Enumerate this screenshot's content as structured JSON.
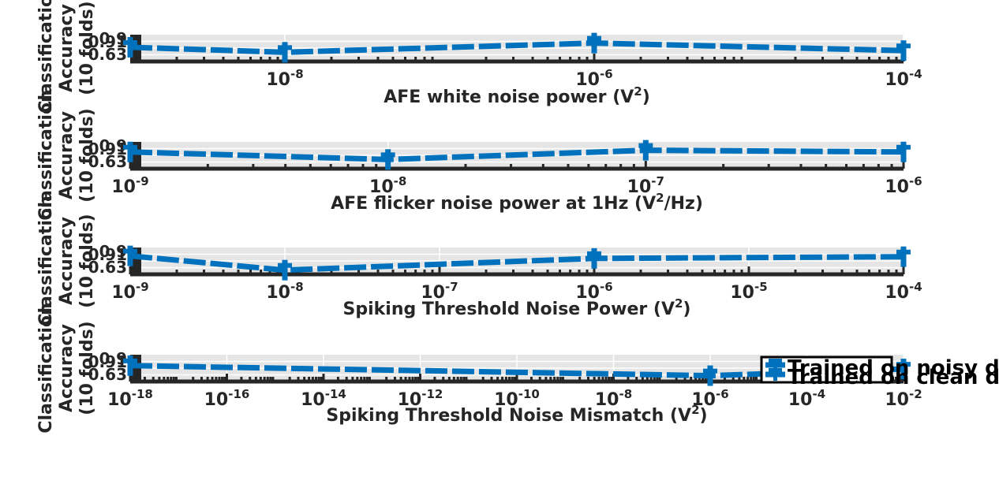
{
  "chart_data": [
    {
      "type": "line",
      "xscale": "log",
      "xlabel": "AFE white noise power (V^2)",
      "ylabel": [
        "Classification",
        "Accuracy",
        "(10 folds)"
      ],
      "xlim": [
        1e-09,
        0.0001
      ],
      "xticks": [
        {
          "value": 1e-08,
          "base": "10",
          "exp": "-8"
        },
        {
          "value": 1e-06,
          "base": "10",
          "exp": "-6"
        },
        {
          "value": 0.0001,
          "base": "10",
          "exp": "-4"
        }
      ],
      "yticks": [
        "0.63",
        "0.9",
        "0.91"
      ],
      "ylim": [
        0.63,
        0.95
      ],
      "grid": true,
      "series": [
        {
          "name": "Trained on noisy data",
          "color": "#0072bd",
          "x": [
            1e-09,
            1e-08,
            1e-06,
            0.0001
          ],
          "y": [
            0.8,
            0.74,
            0.85,
            0.76
          ]
        }
      ]
    },
    {
      "type": "line",
      "xscale": "log",
      "xlabel": "AFE flicker noise power at 1Hz (V^2/Hz)",
      "ylabel": [
        "Classification",
        "Accuracy",
        "(10 folds)"
      ],
      "xlim": [
        1e-09,
        1e-06
      ],
      "xticks": [
        {
          "value": 1e-09,
          "base": "10",
          "exp": "-9"
        },
        {
          "value": 1e-08,
          "base": "10",
          "exp": "-8"
        },
        {
          "value": 1e-07,
          "base": "10",
          "exp": "-7"
        },
        {
          "value": 1e-06,
          "base": "10",
          "exp": "-6"
        }
      ],
      "yticks": [
        "0.63",
        "0.9",
        "0.91"
      ],
      "ylim": [
        0.63,
        0.95
      ],
      "grid": true,
      "series": [
        {
          "name": "Trained on noisy data",
          "color": "#0072bd",
          "x": [
            1e-09,
            1e-08,
            1e-07,
            1e-06
          ],
          "y": [
            0.83,
            0.74,
            0.85,
            0.83
          ]
        }
      ]
    },
    {
      "type": "line",
      "xscale": "log",
      "xlabel": "Spiking Threshold Noise Power (V^2)",
      "ylabel": [
        "Classification",
        "Accuracy",
        "(10 folds)"
      ],
      "xlim": [
        1e-09,
        0.0001
      ],
      "xticks": [
        {
          "value": 1e-09,
          "base": "10",
          "exp": "-9"
        },
        {
          "value": 1e-08,
          "base": "10",
          "exp": "-8"
        },
        {
          "value": 1e-07,
          "base": "10",
          "exp": "-7"
        },
        {
          "value": 1e-06,
          "base": "10",
          "exp": "-6"
        },
        {
          "value": 1e-05,
          "base": "10",
          "exp": "-5"
        },
        {
          "value": 0.0001,
          "base": "10",
          "exp": "-4"
        }
      ],
      "yticks": [
        "0.63",
        "0.9",
        "0.91"
      ],
      "ylim": [
        0.63,
        0.95
      ],
      "grid": true,
      "series": [
        {
          "name": "Trained on noisy data",
          "color": "#0072bd",
          "x": [
            1e-09,
            1e-08,
            1e-06,
            0.0001
          ],
          "y": [
            0.85,
            0.68,
            0.82,
            0.84
          ]
        }
      ]
    },
    {
      "type": "line",
      "xscale": "log",
      "xlabel": "Spiking Threshold Noise Mismatch (V^2)",
      "ylabel": [
        "Classification",
        "Accuracy",
        "(10 folds)"
      ],
      "xlim": [
        1e-18,
        0.01
      ],
      "xticks": [
        {
          "value": 1e-18,
          "base": "10",
          "exp": "-18"
        },
        {
          "value": 1e-16,
          "base": "10",
          "exp": "-16"
        },
        {
          "value": 1e-14,
          "base": "10",
          "exp": "-14"
        },
        {
          "value": 1e-12,
          "base": "10",
          "exp": "-12"
        },
        {
          "value": 1e-10,
          "base": "10",
          "exp": "-10"
        },
        {
          "value": 1e-08,
          "base": "10",
          "exp": "-8"
        },
        {
          "value": 1e-06,
          "base": "10",
          "exp": "-6"
        },
        {
          "value": 0.0001,
          "base": "10",
          "exp": "-4"
        },
        {
          "value": 0.01,
          "base": "10",
          "exp": "-2"
        }
      ],
      "yticks": [
        "0.63",
        "0.9",
        "0.91"
      ],
      "ylim": [
        0.63,
        0.95
      ],
      "grid": true,
      "series": [
        {
          "name": "Trained on noisy data",
          "color": "#0072bd",
          "x": [
            1e-18,
            1e-06,
            0.01
          ],
          "y": [
            0.82,
            0.7,
            0.78
          ]
        }
      ],
      "legend": {
        "placement": "right",
        "entries": [
          {
            "label": "Trained on noisy data",
            "color": "#0072bd"
          },
          {
            "label": "Trained on clean data",
            "color": "#0072bd"
          }
        ]
      }
    }
  ],
  "colors": {
    "axis_fill": "#e5e5e5",
    "grid": "#ffffff",
    "axis_line": "#262626",
    "series": "#0072bd"
  }
}
